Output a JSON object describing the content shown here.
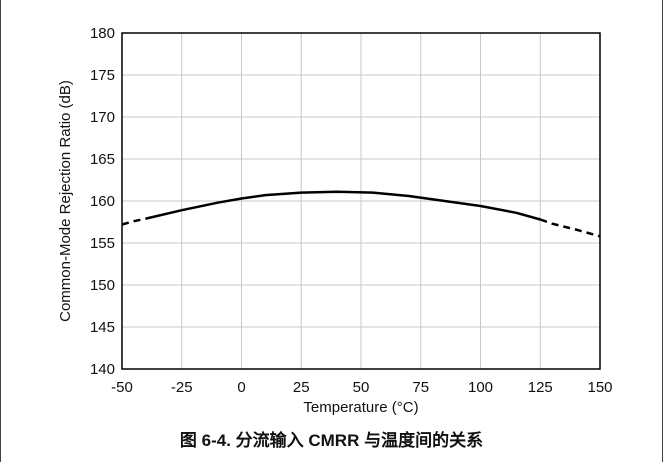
{
  "caption": "图 6-4. 分流输入 CMRR 与温度间的关系",
  "chart_data": {
    "type": "line",
    "title": "",
    "xlabel": "Temperature (°C)",
    "ylabel": "Common-Mode Rejection Ratio (dB)",
    "xlim": [
      -50,
      150
    ],
    "ylim": [
      140,
      180
    ],
    "xticks": [
      -50,
      -25,
      0,
      25,
      50,
      75,
      100,
      125,
      150
    ],
    "yticks": [
      140,
      145,
      150,
      155,
      160,
      165,
      170,
      175,
      180
    ],
    "grid": true,
    "series": [
      {
        "style": "solid",
        "x": [
          -40,
          -25,
          -10,
          0,
          10,
          25,
          40,
          55,
          70,
          85,
          100,
          115,
          125
        ],
        "y": [
          157.9,
          158.9,
          159.8,
          160.3,
          160.7,
          161.0,
          161.1,
          161.0,
          160.6,
          160.0,
          159.4,
          158.6,
          157.8
        ]
      },
      {
        "style": "dashed",
        "x": [
          -50,
          -45,
          -40
        ],
        "y": [
          157.2,
          157.6,
          157.9
        ]
      },
      {
        "style": "dashed",
        "x": [
          125,
          130,
          140,
          150
        ],
        "y": [
          157.8,
          157.3,
          156.6,
          155.8
        ]
      }
    ],
    "colors": {
      "line": "#000000",
      "grid": "#c8c8c8",
      "axis": "#000000"
    }
  }
}
